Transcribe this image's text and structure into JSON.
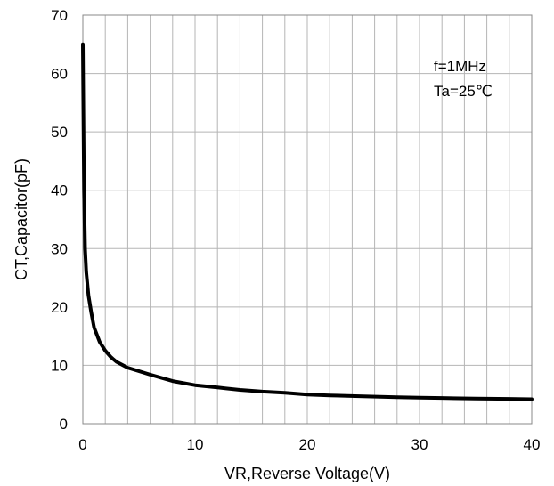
{
  "chart_data": {
    "type": "line",
    "title": "",
    "xlabel": "VR,Reverse Voltage(V)",
    "ylabel": "CT,Capacitor(pF)",
    "xlim": [
      0,
      40
    ],
    "ylim": [
      0,
      70
    ],
    "xticks": [
      0,
      10,
      20,
      30,
      40
    ],
    "yticks": [
      0,
      10,
      20,
      30,
      40,
      50,
      60,
      70
    ],
    "x_minor_step": 2,
    "grid": true,
    "annotations": [
      "f=1MHz",
      "Ta=25℃"
    ],
    "series": [
      {
        "color": "#000000",
        "points": [
          [
            0,
            65
          ],
          [
            0.1,
            40
          ],
          [
            0.2,
            30
          ],
          [
            0.3,
            26
          ],
          [
            0.5,
            22
          ],
          [
            0.75,
            19
          ],
          [
            1,
            16.5
          ],
          [
            1.5,
            14
          ],
          [
            2,
            12.5
          ],
          [
            2.5,
            11.4
          ],
          [
            3,
            10.6
          ],
          [
            4,
            9.6
          ],
          [
            5,
            9.0
          ],
          [
            6,
            8.4
          ],
          [
            8,
            7.3
          ],
          [
            10,
            6.6
          ],
          [
            12,
            6.2
          ],
          [
            14,
            5.8
          ],
          [
            16,
            5.5
          ],
          [
            18,
            5.3
          ],
          [
            20,
            5.0
          ],
          [
            22,
            4.85
          ],
          [
            25,
            4.7
          ],
          [
            28,
            4.55
          ],
          [
            30,
            4.45
          ],
          [
            32,
            4.4
          ],
          [
            35,
            4.3
          ],
          [
            38,
            4.25
          ],
          [
            40,
            4.2
          ]
        ]
      }
    ]
  }
}
